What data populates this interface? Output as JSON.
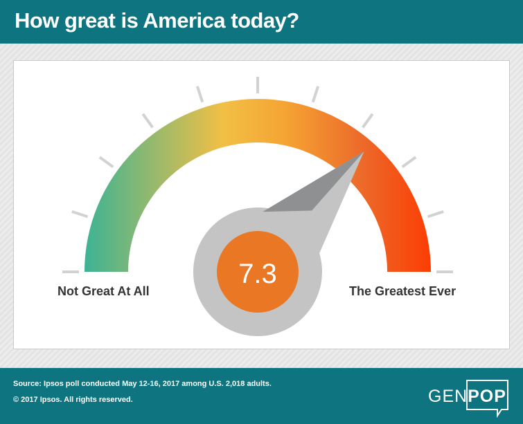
{
  "header": {
    "title": "How great is America today?"
  },
  "chart_data": {
    "type": "gauge",
    "value": 7.3,
    "value_label": "7.3",
    "min_label": "Not Great At All",
    "max_label": "The Greatest Ever",
    "tick_count": 11,
    "colors": {
      "low": "#3db394",
      "mid": "#f2bf45",
      "high": "#f5a433",
      "upper": "#ec6a2a",
      "max": "#fc3d04",
      "needle": "#8e9092",
      "hub": "#c4c4c4",
      "value_circle": "#e97724",
      "ticks": "#d2d2d2"
    }
  },
  "footer": {
    "source": "Source: Ipsos poll conducted May 12-16, 2017 among U.S. 2,018 adults.",
    "copyright": "© 2017 Ipsos. All rights reserved."
  },
  "logo": {
    "left": "GEN",
    "right": "POP"
  }
}
